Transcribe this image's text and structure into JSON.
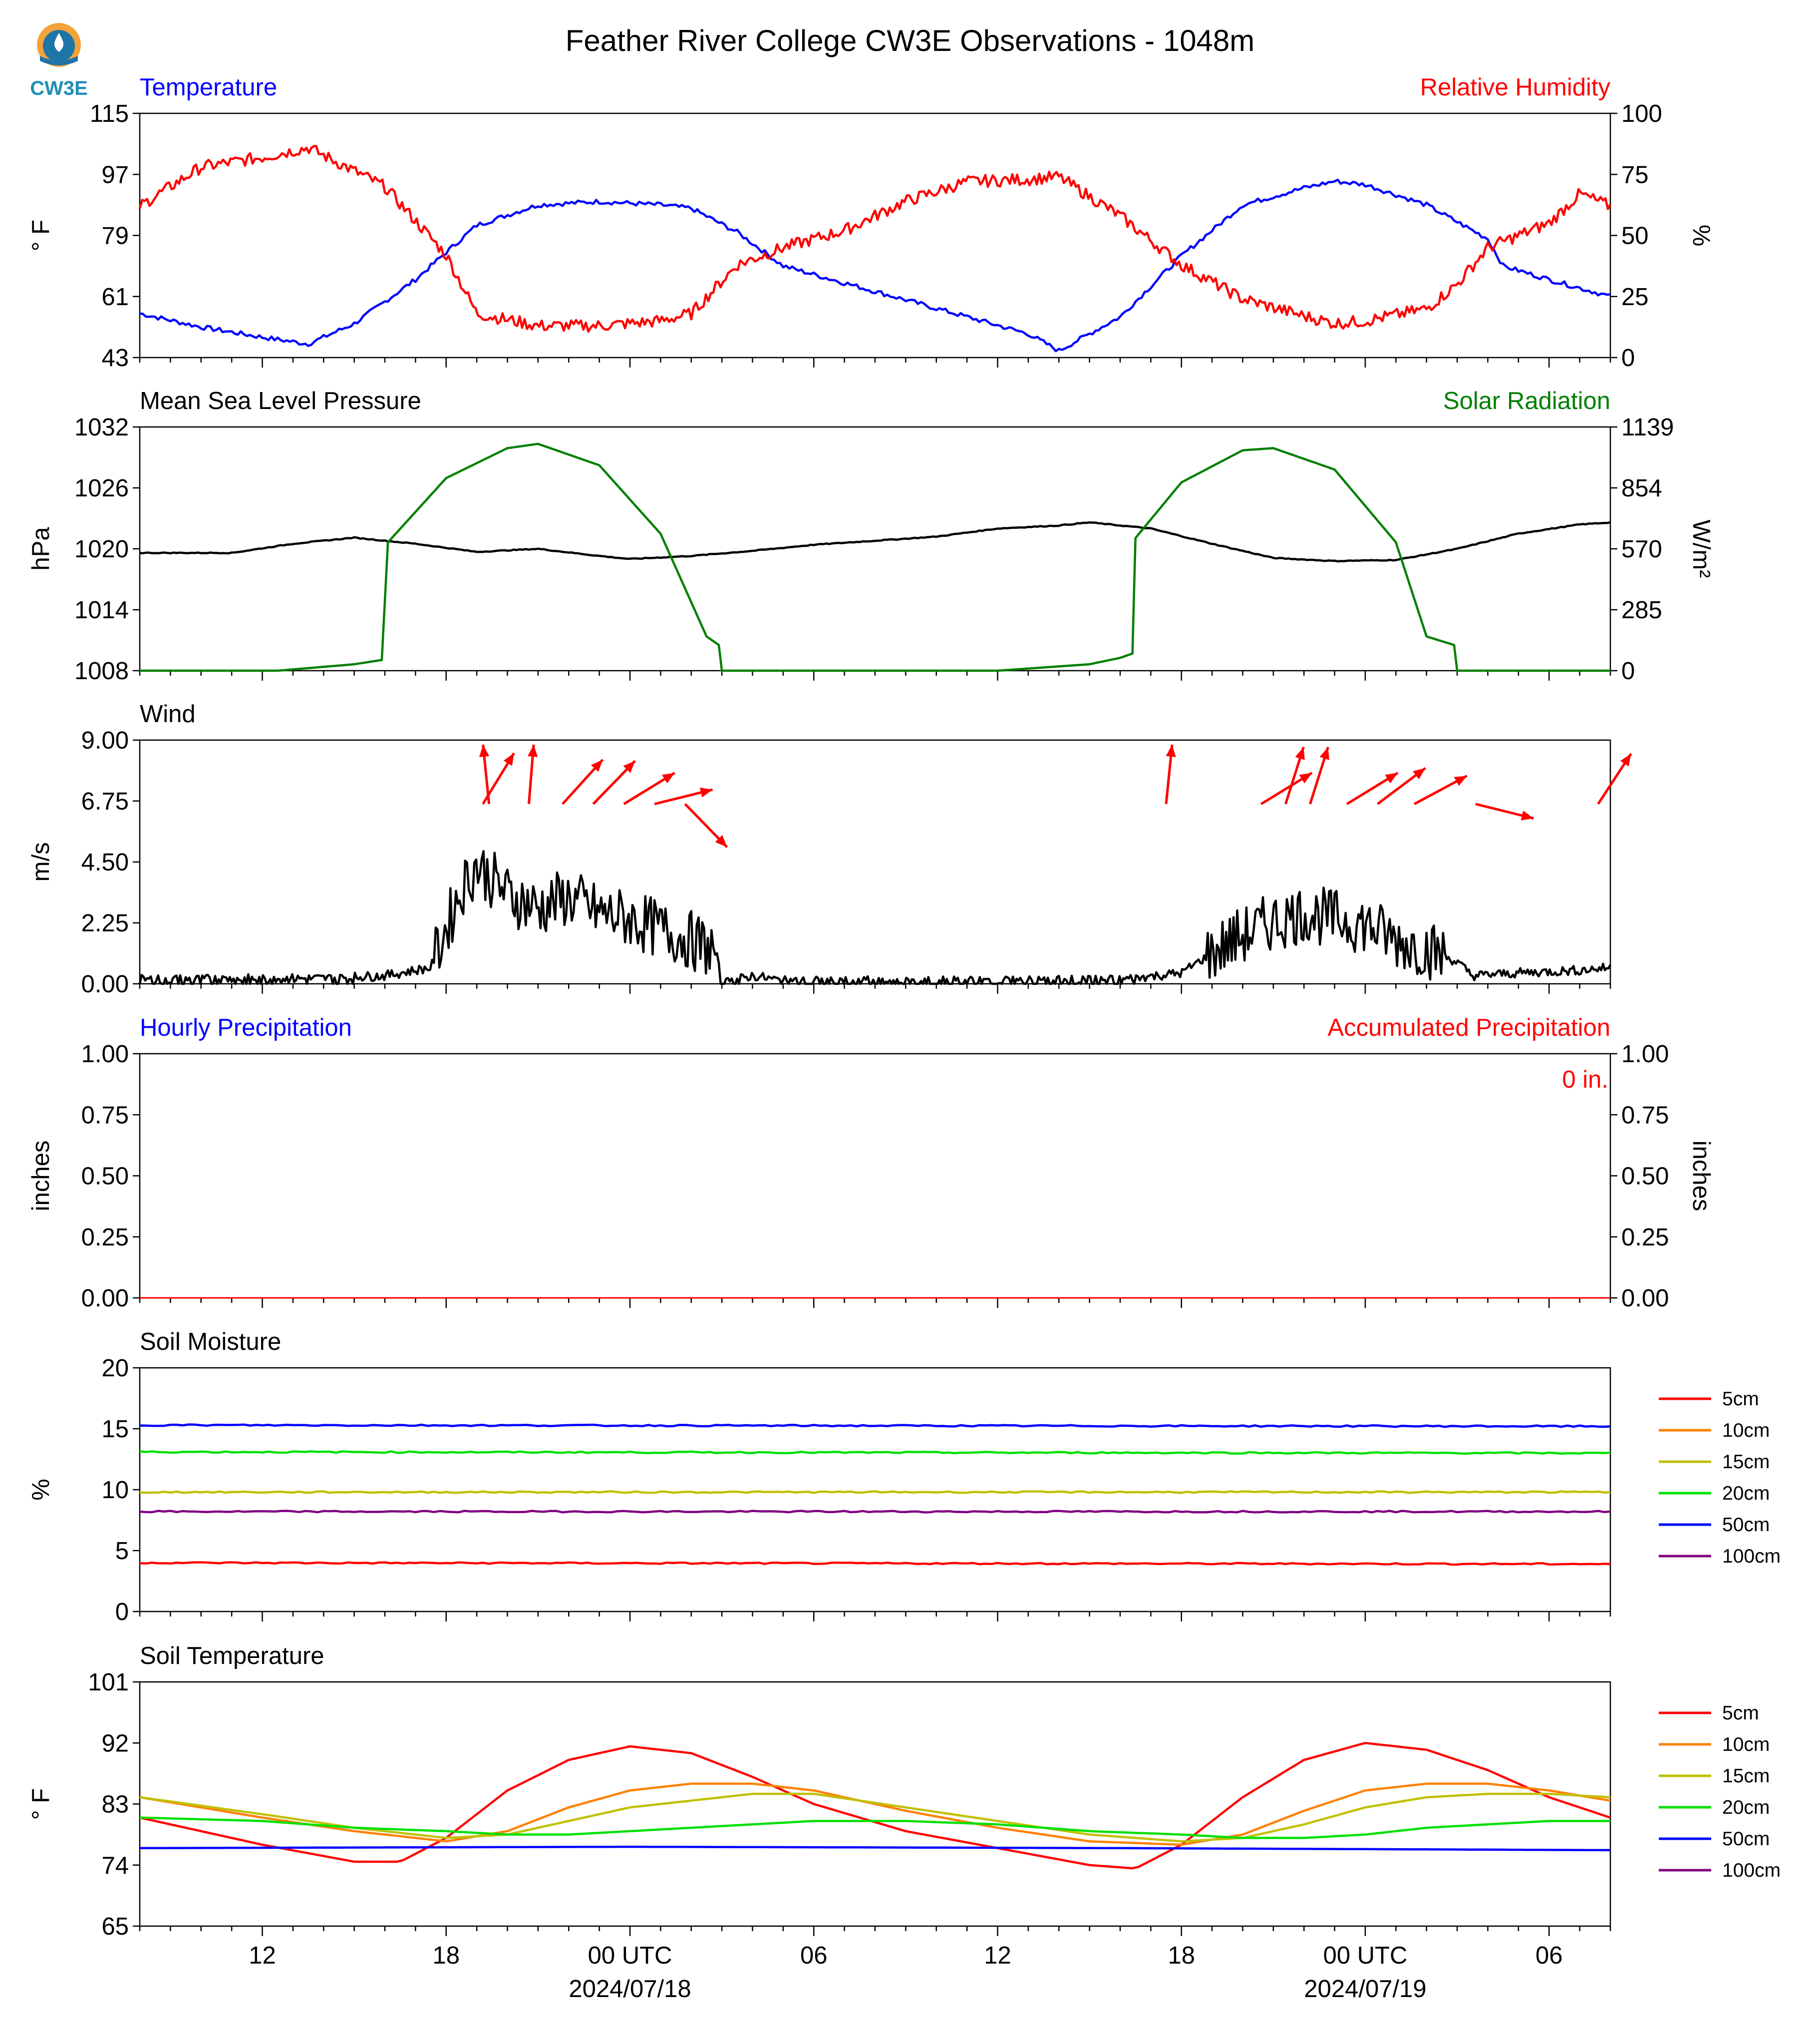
{
  "title": "Feather River College CW3E Observations - 1048m",
  "logo": {
    "text": "CW3E"
  },
  "time_axis": {
    "range_hours": [
      -16,
      32
    ],
    "tick_labels": [
      {
        "hour": -12,
        "label": "12"
      },
      {
        "hour": -6,
        "label": "18"
      },
      {
        "hour": 0,
        "label": "00 UTC",
        "date": "2024/07/18"
      },
      {
        "hour": 6,
        "label": "06"
      },
      {
        "hour": 12,
        "label": "12"
      },
      {
        "hour": 18,
        "label": "18"
      },
      {
        "hour": 24,
        "label": "00 UTC",
        "date": "2024/07/19"
      },
      {
        "hour": 30,
        "label": "06"
      }
    ]
  },
  "panels": {
    "temp": {
      "left_title": "Temperature",
      "right_title": "Relative Humidity",
      "left_unit": "° F",
      "right_unit": "%",
      "left_ticks": [
        "115",
        "97",
        "79",
        "61",
        "43"
      ],
      "right_ticks": [
        "100",
        "75",
        "50",
        "25",
        "0"
      ]
    },
    "pres": {
      "left_title": "Mean Sea Level Pressure",
      "right_title": "Solar Radiation",
      "left_unit": "hPa",
      "right_unit": "W/m²",
      "left_ticks": [
        "1032",
        "1026",
        "1020",
        "1014",
        "1008"
      ],
      "right_ticks": [
        "1139",
        "854",
        "570",
        "285",
        "0"
      ]
    },
    "wind": {
      "left_title": "Wind",
      "left_unit": "m/s",
      "left_ticks": [
        "9.00",
        "6.75",
        "4.50",
        "2.25",
        "0.00"
      ]
    },
    "precip": {
      "left_title": "Hourly Precipitation",
      "right_title": "Accumulated Precipitation",
      "left_unit": "inches",
      "right_unit": "inches",
      "left_ticks": [
        "1.00",
        "0.75",
        "0.50",
        "0.25",
        "0.00"
      ],
      "right_ticks": [
        "1.00",
        "0.75",
        "0.50",
        "0.25",
        "0.00"
      ],
      "accum_label": "0 in."
    },
    "soilm": {
      "left_title": "Soil Moisture",
      "left_unit": "%",
      "left_ticks": [
        "20",
        "15",
        "10",
        "5",
        "0"
      ]
    },
    "soilt": {
      "left_title": "Soil Temperature",
      "left_unit": "° F",
      "left_ticks": [
        "101",
        "92",
        "83",
        "74",
        "65"
      ]
    }
  },
  "colors": {
    "temperature": "#0000ff",
    "humidity": "#ff0000",
    "pressure": "#000000",
    "solar": "#007f00",
    "wind": "#000000",
    "arrows": "#ff0000",
    "precip_hourly": "#0000ff",
    "precip_accum": "#ff0000"
  },
  "legend": [
    {
      "label": "5cm",
      "color": "#ff0000"
    },
    {
      "label": "10cm",
      "color": "#ff8000"
    },
    {
      "label": "15cm",
      "color": "#c0c000"
    },
    {
      "label": "20cm",
      "color": "#00e000"
    },
    {
      "label": "50cm",
      "color": "#0000ff"
    },
    {
      "label": "100cm",
      "color": "#800080"
    }
  ],
  "chart_data": [
    {
      "type": "line",
      "title": "Temperature",
      "ylabel": "° F",
      "ylim": [
        43,
        115
      ],
      "series": [
        {
          "name": "Temperature",
          "x": [
            -16,
            -14,
            -12,
            -10.5,
            -9,
            -7,
            -5,
            -3,
            -1,
            1,
            2,
            3.5,
            5,
            7,
            9,
            11,
            13,
            14,
            16,
            18,
            20,
            22,
            23,
            24,
            26,
            28,
            28.5,
            30,
            32
          ],
          "values": [
            56,
            52,
            49,
            47,
            53,
            66,
            82,
            88,
            89,
            88,
            87,
            80,
            70,
            65,
            60,
            55,
            50,
            45,
            55,
            73,
            88,
            93,
            95,
            94,
            88,
            78,
            70,
            66,
            61
          ]
        }
      ]
    },
    {
      "type": "line",
      "title": "Relative Humidity",
      "ylabel": "%",
      "ylim": [
        0,
        100
      ],
      "series": [
        {
          "name": "Relative Humidity",
          "x": [
            -16,
            -14,
            -12,
            -10.5,
            -8,
            -6,
            -5,
            -3,
            -1,
            1,
            2,
            3.5,
            5,
            7,
            9,
            11,
            13,
            14,
            16,
            18,
            20,
            22,
            23,
            24,
            26,
            27,
            28,
            30,
            31,
            32
          ],
          "values": [
            62,
            78,
            82,
            86,
            70,
            42,
            18,
            13,
            13,
            15,
            18,
            38,
            45,
            52,
            64,
            72,
            73,
            74,
            58,
            38,
            24,
            17,
            14,
            15,
            20,
            30,
            45,
            55,
            67,
            62
          ]
        }
      ]
    },
    {
      "type": "line",
      "title": "Mean Sea Level Pressure",
      "ylabel": "hPa",
      "ylim": [
        1008,
        1032
      ],
      "series": [
        {
          "name": "Mean Sea Level Pressure",
          "x": [
            -16,
            -13,
            -11,
            -9,
            -7,
            -5,
            -3,
            -1,
            0,
            2,
            4,
            6,
            8,
            10,
            12,
            14,
            15,
            17,
            19,
            21,
            23,
            25,
            27,
            29,
            31,
            32
          ],
          "values": [
            1019.6,
            1019.6,
            1020.5,
            1021.1,
            1020.5,
            1019.7,
            1020,
            1019.3,
            1019,
            1019.3,
            1019.8,
            1020.4,
            1020.8,
            1021.2,
            1022,
            1022.3,
            1022.6,
            1022,
            1020.5,
            1019.1,
            1018.8,
            1018.9,
            1020,
            1021.5,
            1022.4,
            1022.6
          ]
        }
      ]
    },
    {
      "type": "line",
      "title": "Solar Radiation",
      "ylabel": "W/m²",
      "ylim": [
        0,
        1139
      ],
      "series": [
        {
          "name": "Solar Radiation",
          "x": [
            -16,
            -11.5,
            -9,
            -8.1,
            -7.9,
            -6,
            -4,
            -3,
            -1,
            1,
            2.5,
            2.9,
            3,
            8,
            12,
            15,
            16,
            16.4,
            16.5,
            18,
            20,
            21,
            23,
            25,
            26,
            26.9,
            27,
            32
          ],
          "values": [
            0,
            0,
            30,
            50,
            600,
            900,
            1040,
            1060,
            960,
            640,
            160,
            120,
            0,
            0,
            0,
            30,
            60,
            80,
            620,
            880,
            1030,
            1040,
            940,
            600,
            160,
            120,
            0,
            0
          ]
        }
      ]
    },
    {
      "type": "line",
      "title": "Wind",
      "ylabel": "m/s",
      "ylim": [
        0,
        9
      ],
      "series": [
        {
          "name": "Wind",
          "x": [
            -16,
            -10,
            -8,
            -6.5,
            -5.5,
            -5,
            -4,
            -3,
            -2,
            -1,
            0,
            1,
            2,
            2.8,
            3,
            4,
            5,
            8,
            12,
            16,
            18,
            19.5,
            21,
            22,
            23,
            24,
            25,
            26,
            27,
            27.5,
            29,
            31,
            32
          ],
          "values": [
            0.15,
            0.2,
            0.3,
            0.6,
            3.5,
            4.4,
            3.3,
            2.8,
            3.2,
            2.6,
            2.4,
            2.0,
            1.6,
            1.2,
            0,
            0.3,
            0.1,
            0.1,
            0.1,
            0.15,
            0.4,
            1.5,
            2.3,
            2.6,
            2.4,
            2.2,
            1.6,
            1.3,
            0.8,
            0.3,
            0.4,
            0.5,
            0.6
          ]
        }
      ]
    },
    {
      "type": "line",
      "title": "Hourly Precipitation",
      "ylabel": "inches",
      "ylim": [
        0,
        1
      ],
      "series": [
        {
          "name": "Hourly Precipitation",
          "x": [
            -16,
            32
          ],
          "values": [
            0,
            0
          ]
        }
      ]
    },
    {
      "type": "line",
      "title": "Soil Moisture",
      "ylabel": "%",
      "ylim": [
        0,
        20
      ],
      "x": [
        -16,
        32
      ],
      "series": [
        {
          "name": "5cm",
          "values": [
            4.0,
            3.9
          ]
        },
        {
          "name": "20cm",
          "values": [
            13.1,
            13.0
          ]
        },
        {
          "name": "15cm",
          "values": [
            9.8,
            9.8
          ]
        },
        {
          "name": "50cm",
          "values": [
            15.3,
            15.2
          ]
        },
        {
          "name": "100cm",
          "values": [
            8.2,
            8.2
          ]
        }
      ]
    },
    {
      "type": "line",
      "title": "Soil Temperature",
      "ylabel": "° F",
      "ylim": [
        65,
        101
      ],
      "series": [
        {
          "name": "5cm",
          "x": [
            -16,
            -12,
            -9,
            -7.5,
            -6,
            -4,
            -2,
            0,
            2,
            4,
            6,
            9,
            12,
            15,
            16.5,
            18,
            20,
            22,
            24,
            26,
            28,
            30,
            32
          ],
          "values": [
            81,
            77,
            74.5,
            74.5,
            78,
            85,
            89.5,
            91.5,
            90.5,
            87,
            83,
            79,
            76.5,
            74,
            73.5,
            77,
            84,
            89.5,
            92,
            91,
            88,
            84,
            81
          ]
        },
        {
          "name": "10cm",
          "x": [
            -16,
            -12,
            -9,
            -6,
            -4,
            -2,
            0,
            2,
            4,
            6,
            9,
            12,
            15,
            18,
            20,
            22,
            24,
            26,
            28,
            30,
            32
          ],
          "values": [
            84,
            81,
            79,
            77.5,
            79,
            82.5,
            85,
            86,
            86,
            85,
            82,
            79.5,
            77.5,
            77,
            78.5,
            82,
            85,
            86,
            86,
            85,
            83.5
          ]
        },
        {
          "name": "15cm",
          "x": [
            -16,
            -12,
            -9,
            -6,
            -4,
            -2,
            0,
            2,
            4,
            6,
            9,
            12,
            15,
            18,
            20,
            22,
            24,
            26,
            28,
            30,
            32
          ],
          "values": [
            84,
            81.5,
            79.5,
            78,
            78.5,
            80.5,
            82.5,
            83.5,
            84.5,
            84.5,
            82.5,
            80.5,
            78.5,
            77.5,
            78,
            80,
            82.5,
            84,
            84.5,
            84.5,
            84
          ]
        },
        {
          "name": "20cm",
          "x": [
            -16,
            -12,
            -9,
            -6,
            -4,
            -2,
            0,
            2,
            4,
            6,
            9,
            12,
            15,
            18,
            20,
            22,
            24,
            26,
            28,
            30,
            32
          ],
          "values": [
            81,
            80.5,
            79.5,
            79,
            78.5,
            78.5,
            79,
            79.5,
            80,
            80.5,
            80.5,
            80,
            79,
            78.5,
            78,
            78,
            78.5,
            79.5,
            80,
            80.5,
            80.5
          ]
        },
        {
          "name": "50cm",
          "x": [
            -16,
            0,
            16,
            32
          ],
          "values": [
            76.5,
            76.7,
            76.5,
            76.2
          ]
        }
      ]
    },
    {
      "type": "vector",
      "title": "Wind direction arrows",
      "entries": [
        {
          "hour": -4.8,
          "u": 0.52,
          "v": 0.85
        },
        {
          "hour": -4.6,
          "u": -0.1,
          "v": 0.99
        },
        {
          "hour": -3.3,
          "u": 0.08,
          "v": 0.99
        },
        {
          "hour": -2.2,
          "u": 0.67,
          "v": 0.74
        },
        {
          "hour": -1.2,
          "u": 0.7,
          "v": 0.72
        },
        {
          "hour": -0.2,
          "u": 0.85,
          "v": 0.52
        },
        {
          "hour": 0.8,
          "u": 0.97,
          "v": 0.24
        },
        {
          "hour": 1.8,
          "u": 0.7,
          "v": -0.72
        },
        {
          "hour": 17.5,
          "u": 0.1,
          "v": 0.99
        },
        {
          "hour": 20.6,
          "u": 0.85,
          "v": 0.52
        },
        {
          "hour": 21.4,
          "u": 0.3,
          "v": 0.95
        },
        {
          "hour": 22.2,
          "u": 0.3,
          "v": 0.95
        },
        {
          "hour": 23.4,
          "u": 0.85,
          "v": 0.52
        },
        {
          "hour": 24.4,
          "u": 0.8,
          "v": 0.6
        },
        {
          "hour": 25.6,
          "u": 0.88,
          "v": 0.47
        },
        {
          "hour": 27.6,
          "u": 0.97,
          "v": -0.24
        },
        {
          "hour": 31.6,
          "u": 0.55,
          "v": 0.84
        }
      ]
    }
  ]
}
